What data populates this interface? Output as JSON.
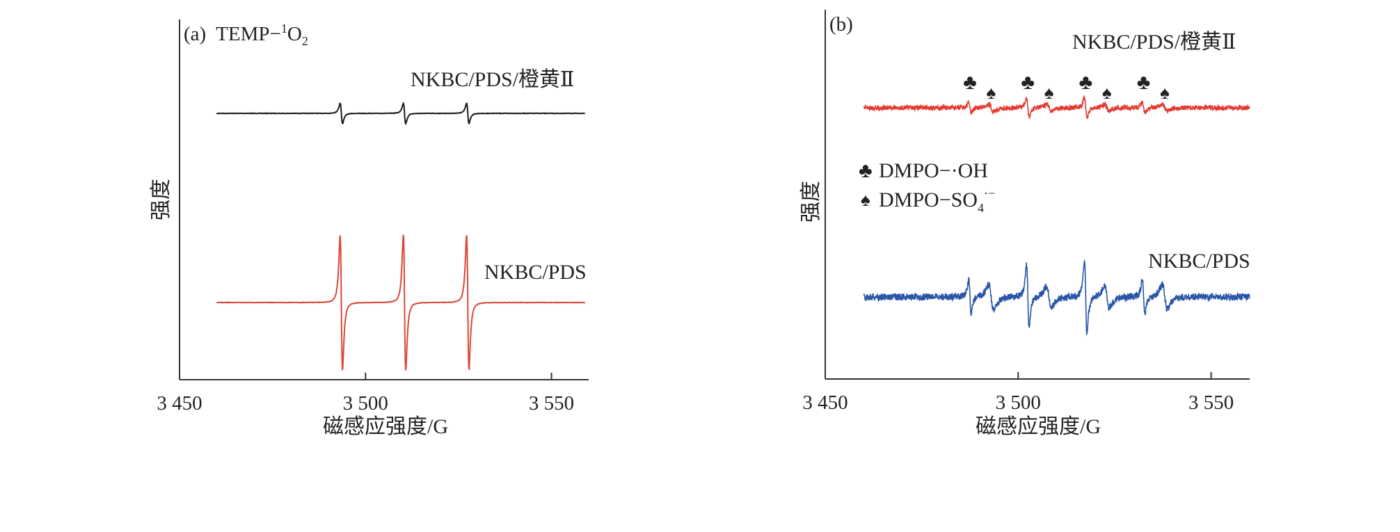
{
  "chart_data": [
    {
      "type": "line",
      "panel_label": "(a)",
      "probe": "TEMP",
      "species": {
        "prefix": "−",
        "sup": "1",
        "main": "O",
        "sub": "2"
      },
      "xlabel": "磁感应强度/G",
      "ylabel": "强度",
      "xlim": [
        3450,
        3560
      ],
      "xticks": [
        3450,
        3500,
        3550
      ],
      "xtick_labels": [
        "3 450",
        "3 500",
        "3 550"
      ],
      "grid": false,
      "series": [
        {
          "name": "NKBC/PDS/橙黄Ⅱ",
          "color": "#1a1a1a",
          "x_start": 3460,
          "x_end": 3559,
          "peak_centers": [
            3493.5,
            3510.5,
            3527.5
          ],
          "relative_amplitude": 0.15
        },
        {
          "name": "NKBC/PDS",
          "color": "#d9483b",
          "x_start": 3460,
          "x_end": 3559,
          "peak_centers": [
            3493.5,
            3510.5,
            3527.5
          ],
          "relative_amplitude": 1.0
        }
      ]
    },
    {
      "type": "line",
      "panel_label": "(b)",
      "xlabel": "磁感应强度/G",
      "ylabel": "强度",
      "xlim": [
        3450,
        3560
      ],
      "xticks": [
        3450,
        3500,
        3550
      ],
      "xtick_labels": [
        "3 450",
        "3 500",
        "3 550"
      ],
      "grid": false,
      "legend": {
        "placement": "left-middle",
        "entries": [
          {
            "symbol": "♣",
            "label": "DMPO−·OH"
          },
          {
            "symbol": "♠",
            "label": "DMPO−SO",
            "sub": "4",
            "sup": "·−"
          }
        ]
      },
      "series": [
        {
          "name": "NKBC/PDS/橙黄Ⅱ",
          "color": "#e23b32",
          "x_start": 3460,
          "x_end": 3560,
          "oh_peak_centers": [
            3487.5,
            3502.5,
            3517.5,
            3532.5
          ],
          "so4_peak_centers": [
            3493,
            3508,
            3523,
            3538
          ],
          "relative_amplitude": 0.3
        },
        {
          "name": "NKBC/PDS",
          "color": "#2a55a6",
          "x_start": 3460,
          "x_end": 3560,
          "oh_peak_centers": [
            3487.5,
            3502.5,
            3517.5,
            3532.5
          ],
          "so4_peak_centers": [
            3493,
            3508,
            3523,
            3538
          ],
          "relative_amplitude": 1.0
        }
      ],
      "annotations": [
        {
          "symbol": "♣",
          "x": 3487.5,
          "series": "NKBC/PDS/橙黄Ⅱ"
        },
        {
          "symbol": "♠",
          "x": 3493,
          "series": "NKBC/PDS/橙黄Ⅱ"
        },
        {
          "symbol": "♣",
          "x": 3502.5,
          "series": "NKBC/PDS/橙黄Ⅱ"
        },
        {
          "symbol": "♠",
          "x": 3508,
          "series": "NKBC/PDS/橙黄Ⅱ"
        },
        {
          "symbol": "♣",
          "x": 3517.5,
          "series": "NKBC/PDS/橙黄Ⅱ"
        },
        {
          "symbol": "♠",
          "x": 3523,
          "series": "NKBC/PDS/橙黄Ⅱ"
        },
        {
          "symbol": "♣",
          "x": 3532.5,
          "series": "NKBC/PDS/橙黄Ⅱ"
        },
        {
          "symbol": "♠",
          "x": 3538,
          "series": "NKBC/PDS/橙黄Ⅱ"
        }
      ]
    }
  ]
}
